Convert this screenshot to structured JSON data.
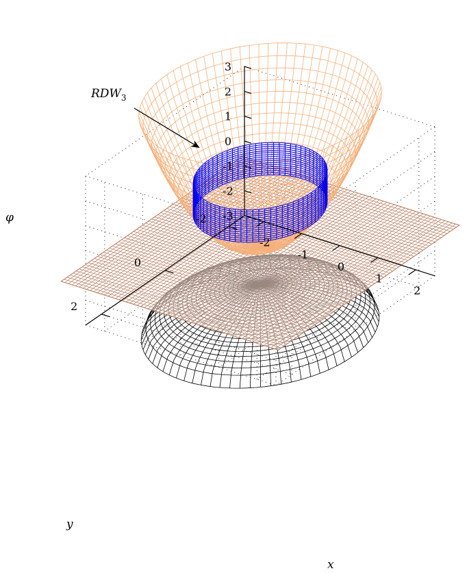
{
  "chart_data": {
    "type": "surface3d",
    "xlabel": "x",
    "ylabel": "y",
    "zlabel": "φ",
    "x_ticks": [
      "-2",
      "-1",
      "0",
      "1",
      "2"
    ],
    "y_ticks": [
      "-2",
      "0",
      "2"
    ],
    "z_ticks": [
      "3",
      "2",
      "1",
      "0",
      "-1",
      "-2",
      "-3"
    ],
    "xlim": [
      -2.5,
      2.5
    ],
    "ylim": [
      -2.5,
      2.5
    ],
    "zlim": [
      -3,
      3
    ],
    "grid": true,
    "surfaces": [
      {
        "kind": "upper-bowl",
        "color": "#f5b07a"
      },
      {
        "kind": "middle-plane",
        "color": "#b87d60"
      },
      {
        "kind": "lower-dome",
        "color": "#000000"
      },
      {
        "kind": "domain-wall-ring",
        "color": "#0000ee"
      }
    ],
    "annotations": [
      {
        "label": "RDW",
        "subscript": "3"
      }
    ]
  }
}
